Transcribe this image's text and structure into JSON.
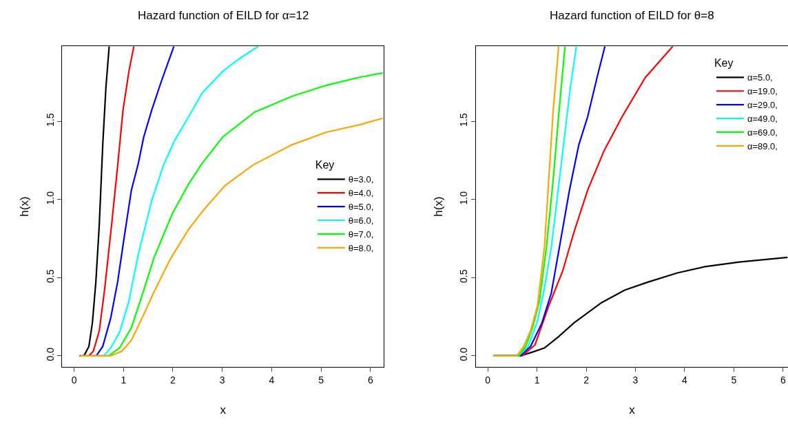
{
  "chart_data": [
    {
      "type": "line",
      "title": "Hazard function of EILD for α=12",
      "xlabel": "x",
      "ylabel": "h(x)",
      "legend_title": "Key",
      "legend": "right",
      "marker": "none",
      "line_style": "solid",
      "xlim": [
        -0.24,
        6.27
      ],
      "ylim": [
        -0.07,
        1.98
      ],
      "xticks": [
        0,
        1,
        2,
        3,
        4,
        5,
        6
      ],
      "yticks": [
        {
          "value": 0,
          "label": "0.0"
        },
        {
          "value": 0.5,
          "label": "0.5"
        },
        {
          "value": 1,
          "label": "1.0"
        },
        {
          "value": 1.5,
          "label": "1.5"
        }
      ],
      "series": [
        {
          "name": "θ=3.0,",
          "color": "#000000",
          "x": [
            0.11,
            0.2,
            0.3,
            0.37,
            0.44,
            0.51,
            0.58,
            0.645,
            0.71
          ],
          "values": [
            0,
            0,
            0.06,
            0.21,
            0.47,
            0.84,
            1.35,
            1.72,
            1.98
          ]
        },
        {
          "name": "θ=4.0,",
          "color": "#ff0000",
          "x": [
            0.2,
            0.3,
            0.39,
            0.51,
            0.62,
            0.76,
            0.88,
            0.99,
            1.11,
            1.21
          ],
          "values": [
            0,
            0,
            0.03,
            0.16,
            0.43,
            0.84,
            1.21,
            1.57,
            1.82,
            1.98
          ]
        },
        {
          "name": "θ=5.0,",
          "color": "#0000ff",
          "x": [
            0.3,
            0.45,
            0.58,
            0.74,
            0.88,
            1.02,
            1.16,
            1.3,
            1.41,
            1.57,
            1.76,
            2.02
          ],
          "values": [
            0,
            0,
            0.06,
            0.24,
            0.47,
            0.77,
            1.06,
            1.23,
            1.4,
            1.57,
            1.75,
            1.98
          ]
        },
        {
          "name": "θ=6.0,",
          "color": "#00ffff",
          "x": [
            0.4,
            0.6,
            0.74,
            0.92,
            1.11,
            1.3,
            1.57,
            1.81,
            2.04,
            2.32,
            2.59,
            3.01,
            3.34,
            3.73
          ],
          "values": [
            0,
            0,
            0.05,
            0.15,
            0.35,
            0.65,
            0.99,
            1.22,
            1.38,
            1.53,
            1.68,
            1.82,
            1.9,
            1.98
          ]
        },
        {
          "name": "θ=7.0,",
          "color": "#00ff00",
          "x": [
            0.5,
            0.7,
            0.92,
            1.16,
            1.39,
            1.62,
            1.99,
            2.32,
            2.59,
            3.01,
            3.66,
            4.41,
            5.1,
            5.75,
            6.25
          ],
          "values": [
            0,
            0,
            0.05,
            0.18,
            0.4,
            0.63,
            0.91,
            1.1,
            1.23,
            1.4,
            1.56,
            1.66,
            1.73,
            1.78,
            1.81
          ]
        },
        {
          "name": "θ=8.0,",
          "color": "#ffa500",
          "x": [
            0.12,
            0.74,
            0.97,
            1.16,
            1.39,
            1.62,
            1.95,
            2.32,
            2.64,
            3.06,
            3.62,
            4.41,
            5.1,
            5.8,
            6.25
          ],
          "values": [
            0,
            0,
            0.03,
            0.1,
            0.25,
            0.41,
            0.62,
            0.81,
            0.94,
            1.09,
            1.22,
            1.35,
            1.43,
            1.48,
            1.52
          ]
        }
      ]
    },
    {
      "type": "line",
      "title": "Hazard function of EILD for θ=8",
      "xlabel": "x",
      "ylabel": "h(x)",
      "legend_title": "Key",
      "legend": "top right",
      "marker": "none",
      "line_style": "solid",
      "xlim": [
        -0.24,
        6.1
      ],
      "ylim": [
        -0.07,
        1.98
      ],
      "xticks": [
        0,
        1,
        2,
        3,
        4,
        5,
        6
      ],
      "yticks": [
        {
          "value": 0,
          "label": "0.0"
        },
        {
          "value": 0.5,
          "label": "0.5"
        },
        {
          "value": 1,
          "label": "1.0"
        },
        {
          "value": 1.5,
          "label": "1.5"
        }
      ],
      "series": [
        {
          "name": "α=5.0,",
          "color": "#000000",
          "x": [
            0.12,
            0.66,
            0.87,
            1.15,
            1.43,
            1.75,
            2.31,
            2.78,
            3.24,
            3.85,
            4.41,
            5.11,
            6.09
          ],
          "values": [
            0,
            0,
            0.02,
            0.05,
            0.12,
            0.21,
            0.34,
            0.42,
            0.47,
            0.53,
            0.57,
            0.6,
            0.63
          ]
        },
        {
          "name": "α=19.0,",
          "color": "#ff0000",
          "x": [
            0.12,
            0.7,
            0.96,
            1.24,
            1.52,
            1.75,
            2.03,
            2.36,
            2.73,
            3.2,
            3.76
          ],
          "values": [
            0,
            0,
            0.07,
            0.32,
            0.54,
            0.79,
            1.06,
            1.31,
            1.53,
            1.78,
            1.98
          ]
        },
        {
          "name": "α=29.0,",
          "color": "#0000ff",
          "x": [
            0.12,
            0.66,
            0.87,
            1.1,
            1.29,
            1.47,
            1.66,
            1.85,
            2.03,
            2.22,
            2.38
          ],
          "values": [
            0,
            0,
            0.06,
            0.21,
            0.4,
            0.72,
            1.06,
            1.35,
            1.53,
            1.78,
            1.98
          ]
        },
        {
          "name": "α=49.0,",
          "color": "#00ffff",
          "x": [
            0.12,
            0.63,
            0.82,
            1.01,
            1.15,
            1.29,
            1.43,
            1.57,
            1.68,
            1.8
          ],
          "values": [
            0,
            0,
            0.06,
            0.22,
            0.43,
            0.69,
            1.06,
            1.43,
            1.72,
            1.98
          ]
        },
        {
          "name": "α=69.0,",
          "color": "#00ff00",
          "x": [
            0.12,
            0.63,
            0.77,
            0.91,
            1.05,
            1.19,
            1.33,
            1.45,
            1.57
          ],
          "values": [
            0,
            0,
            0.06,
            0.18,
            0.35,
            0.69,
            1.13,
            1.57,
            1.98
          ]
        },
        {
          "name": "α=89.0,",
          "color": "#ffa500",
          "x": [
            0.12,
            0.59,
            0.73,
            0.87,
            1.01,
            1.15,
            1.24,
            1.33,
            1.44
          ],
          "values": [
            0,
            0,
            0.06,
            0.16,
            0.32,
            0.69,
            1.13,
            1.57,
            1.98
          ]
        }
      ]
    }
  ]
}
